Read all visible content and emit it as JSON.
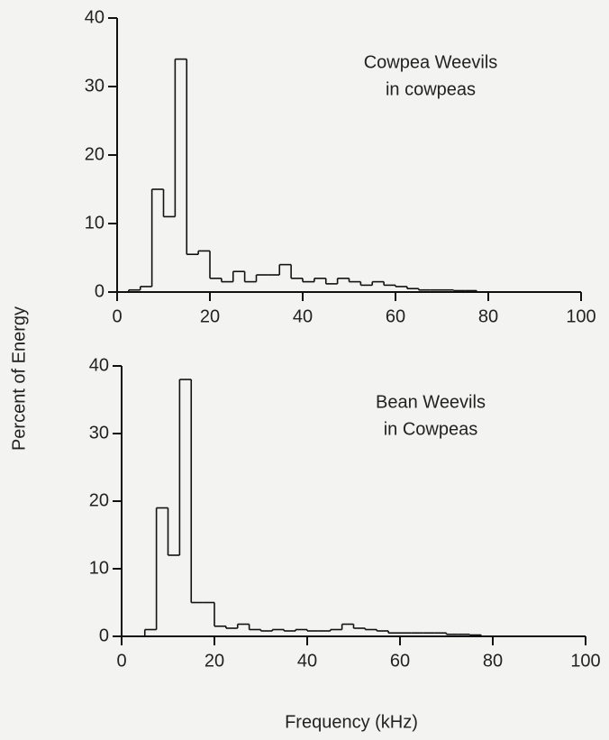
{
  "ylabel": "Percent of Energy",
  "xlabel": "Frequency (kHz)",
  "chart_data": [
    {
      "type": "histogram",
      "annotation": [
        "Cowpea Weevils",
        "in cowpeas"
      ],
      "bins": [
        0,
        2.5,
        5,
        7.5,
        10,
        12.5,
        15,
        17.5,
        20,
        22.5,
        25,
        27.5,
        30,
        32.5,
        35,
        37.5,
        40,
        42.5,
        45,
        47.5,
        50,
        52.5,
        55,
        57.5,
        60,
        62.5,
        65,
        67.5,
        70,
        72.5,
        75,
        77.5,
        80,
        82.5,
        85,
        87.5,
        90,
        92.5,
        95,
        97.5,
        100
      ],
      "values": [
        0,
        0.3,
        0.8,
        15,
        11,
        34,
        5.5,
        6,
        2,
        1.5,
        3,
        1.5,
        2.5,
        2.5,
        4,
        2,
        1.5,
        2,
        1.2,
        2,
        1.5,
        1,
        1.5,
        1,
        0.8,
        0.5,
        0.3,
        0.3,
        0.3,
        0.2,
        0.2,
        0,
        0,
        0,
        0,
        0,
        0,
        0,
        0,
        0
      ],
      "xlim": [
        0,
        100
      ],
      "xticks": [
        0,
        20,
        40,
        60,
        80,
        100
      ],
      "ylim": [
        0,
        40
      ],
      "yticks": [
        0,
        10,
        20,
        30,
        40
      ],
      "color": "#111111"
    },
    {
      "type": "histogram",
      "annotation": [
        "Bean Weevils",
        "in Cowpeas"
      ],
      "bins": [
        0,
        2.5,
        5,
        7.5,
        10,
        12.5,
        15,
        17.5,
        20,
        22.5,
        25,
        27.5,
        30,
        32.5,
        35,
        37.5,
        40,
        42.5,
        45,
        47.5,
        50,
        52.5,
        55,
        57.5,
        60,
        62.5,
        65,
        67.5,
        70,
        72.5,
        75,
        77.5,
        80,
        82.5,
        85,
        87.5,
        90,
        92.5,
        95,
        97.5,
        100
      ],
      "values": [
        0,
        0,
        1,
        19,
        12,
        38,
        5,
        5,
        1.5,
        1.2,
        1.8,
        1,
        0.8,
        1,
        0.8,
        1,
        0.8,
        0.8,
        1,
        1.8,
        1.2,
        1,
        0.8,
        0.5,
        0.5,
        0.5,
        0.5,
        0.5,
        0.3,
        0.3,
        0.2,
        0,
        0,
        0,
        0,
        0,
        0,
        0,
        0,
        0
      ],
      "xlim": [
        0,
        100
      ],
      "xticks": [
        0,
        20,
        40,
        60,
        80,
        100
      ],
      "ylim": [
        0,
        40
      ],
      "yticks": [
        0,
        10,
        20,
        30,
        40
      ],
      "color": "#111111"
    }
  ]
}
